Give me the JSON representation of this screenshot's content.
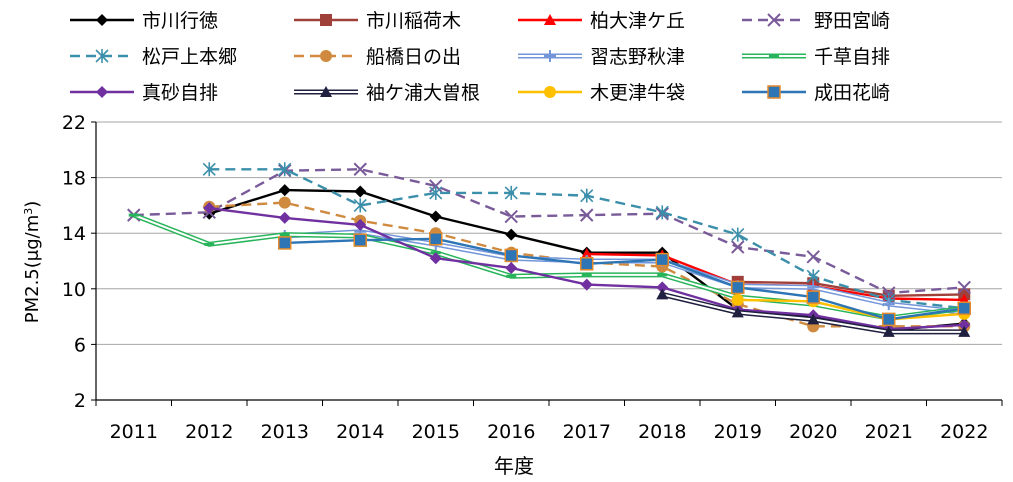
{
  "chart_data": {
    "type": "line",
    "title": "",
    "xlabel": "年度",
    "ylabel": "PM2.5(μg/m³)",
    "ylabel_parts": {
      "main": "PM2.5(μg/m",
      "sup": "3",
      "close": ")"
    },
    "ylim": [
      2,
      22
    ],
    "yticks": [
      2,
      6,
      10,
      14,
      18,
      22
    ],
    "grid": true,
    "legend_position": "top",
    "categories": [
      "2011",
      "2012",
      "2013",
      "2014",
      "2015",
      "2016",
      "2017",
      "2018",
      "2019",
      "2020",
      "2021",
      "2022"
    ],
    "series": [
      {
        "name": "市川行徳",
        "color": "#000000",
        "marker": "diamond",
        "dash": "solid",
        "outline": false,
        "values": [
          null,
          15.4,
          17.1,
          17.0,
          15.2,
          13.9,
          12.6,
          12.6,
          8.5,
          8.0,
          7.0,
          7.5
        ]
      },
      {
        "name": "市川稲荷木",
        "color": "#a0403a",
        "marker": "square",
        "dash": "solid",
        "outline": false,
        "values": [
          null,
          null,
          null,
          null,
          null,
          null,
          null,
          null,
          10.5,
          10.4,
          9.5,
          9.6
        ]
      },
      {
        "name": "柏大津ケ丘",
        "color": "#ff0000",
        "marker": "triangle",
        "dash": "solid",
        "outline": false,
        "values": [
          null,
          null,
          null,
          null,
          null,
          null,
          12.5,
          12.4,
          10.3,
          10.2,
          9.3,
          9.2
        ]
      },
      {
        "name": "野田宮崎",
        "color": "#7a5b99",
        "marker": "x",
        "dash": "dash",
        "outline": false,
        "values": [
          15.3,
          15.5,
          18.5,
          18.6,
          17.4,
          15.2,
          15.3,
          15.4,
          13.0,
          12.3,
          9.7,
          10.1
        ]
      },
      {
        "name": "松戸上本郷",
        "color": "#3b8faa",
        "marker": "asterisk",
        "dash": "dash",
        "outline": false,
        "values": [
          null,
          18.6,
          18.6,
          16.0,
          16.9,
          16.9,
          16.7,
          15.5,
          13.9,
          10.9,
          9.2,
          8.6
        ]
      },
      {
        "name": "船橋日の出",
        "color": "#cf8a3f",
        "marker": "circle",
        "dash": "dash",
        "outline": false,
        "values": [
          null,
          15.9,
          16.2,
          14.9,
          14.0,
          12.6,
          11.9,
          11.6,
          8.9,
          7.3,
          7.3,
          7.3
        ]
      },
      {
        "name": "習志野秋津",
        "color": "#7396d9",
        "marker": "plus",
        "dash": "solid",
        "outline": true,
        "values": [
          null,
          null,
          13.8,
          14.1,
          13.2,
          12.2,
          12.0,
          12.0,
          10.2,
          10.1,
          8.9,
          8.3
        ]
      },
      {
        "name": "千草自排",
        "color": "#28b45a",
        "marker": "dash",
        "dash": "solid",
        "outline": true,
        "values": [
          15.3,
          13.2,
          13.9,
          13.8,
          12.6,
          10.9,
          11.0,
          11.0,
          9.4,
          8.9,
          7.9,
          8.6
        ]
      },
      {
        "name": "真砂自排",
        "color": "#7030a0",
        "marker": "diamond",
        "dash": "solid",
        "outline": false,
        "values": [
          null,
          15.8,
          15.1,
          14.6,
          12.2,
          11.5,
          10.3,
          10.1,
          8.5,
          8.1,
          7.1,
          7.4
        ]
      },
      {
        "name": "袖ケ浦大曽根",
        "color": "#1f1f3f",
        "marker": "triangle",
        "dash": "solid",
        "outline": true,
        "values": [
          null,
          null,
          null,
          null,
          null,
          null,
          null,
          9.6,
          8.3,
          7.8,
          6.9,
          6.9
        ]
      },
      {
        "name": "木更津牛袋",
        "color": "#ffc000",
        "marker": "circle",
        "dash": "solid",
        "outline": false,
        "values": [
          null,
          null,
          null,
          null,
          null,
          null,
          null,
          null,
          9.2,
          9.1,
          7.8,
          8.2
        ]
      },
      {
        "name": "成田花崎",
        "color": "#2e75b6",
        "marker": "square",
        "dash": "solid",
        "outline": false,
        "values": [
          null,
          null,
          13.3,
          13.5,
          13.6,
          12.4,
          11.8,
          12.1,
          10.1,
          9.4,
          7.8,
          8.6
        ]
      }
    ]
  }
}
